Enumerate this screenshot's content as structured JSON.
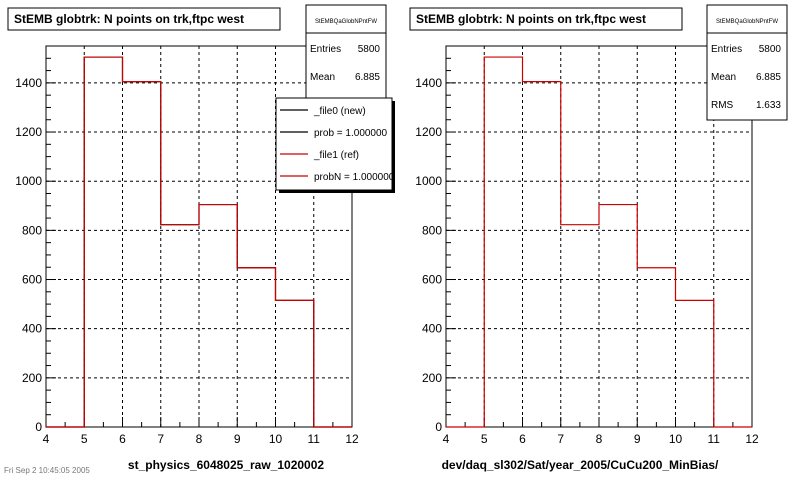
{
  "footer": {
    "stamp": "Fri Sep  2 10:45:05 2005"
  },
  "chart_data": [
    {
      "type": "bar",
      "title": "StEMB globtrk: N points on trk,ftpc west",
      "xlabel": "st_physics_6048025_raw_1020002",
      "ylabel": "",
      "xlim": [
        4,
        12
      ],
      "ylim": [
        0,
        1550
      ],
      "xticks": [
        4,
        5,
        6,
        7,
        8,
        9,
        10,
        11,
        12
      ],
      "yticks": [
        0,
        200,
        400,
        600,
        800,
        1000,
        1200,
        1400
      ],
      "grid": true,
      "bin_edges": [
        4,
        5,
        6,
        7,
        8,
        9,
        10,
        11,
        12
      ],
      "series": [
        {
          "name": "_file0 (new)",
          "color": "#000000",
          "values": [
            0,
            1505,
            1405,
            823,
            905,
            648,
            515,
            0
          ]
        },
        {
          "name": "_file1 (ref)",
          "color": "#cc0000",
          "values": [
            0,
            1505,
            1405,
            823,
            905,
            648,
            515,
            0
          ]
        }
      ],
      "stats": {
        "name": "StEMBQaGlobNPntFW",
        "entries_label": "Entries",
        "entries": "5800",
        "mean_label": "Mean",
        "mean": "6.885"
      },
      "legend": {
        "placement": "top-right",
        "entries": [
          {
            "label": "_file0 (new)",
            "color": "#000000"
          },
          {
            "label": "prob = 1.000000",
            "color": "#000000"
          },
          {
            "label": "_file1 (ref)",
            "color": "#cc0000"
          },
          {
            "label": "probN = 1.000000",
            "color": "#cc0000"
          }
        ]
      }
    },
    {
      "type": "bar",
      "title": "StEMB globtrk: N points on trk,ftpc west",
      "xlabel": "dev/daq_sl302/Sat/year_2005/CuCu200_MinBias/",
      "ylabel": "",
      "xlim": [
        4,
        12
      ],
      "ylim": [
        0,
        1550
      ],
      "xticks": [
        4,
        5,
        6,
        7,
        8,
        9,
        10,
        11,
        12
      ],
      "yticks": [
        0,
        200,
        400,
        600,
        800,
        1000,
        1200,
        1400
      ],
      "grid": true,
      "bin_edges": [
        4,
        5,
        6,
        7,
        8,
        9,
        10,
        11,
        12
      ],
      "series": [
        {
          "color": "#cc0000",
          "values": [
            0,
            1505,
            1405,
            823,
            905,
            648,
            515,
            0
          ]
        }
      ],
      "stats": {
        "name": "StEMBQaGlobNPntFW",
        "entries_label": "Entries",
        "entries": "5800",
        "mean_label": "Mean",
        "mean": "6.885",
        "rms_label": "RMS",
        "rms": "1.633"
      }
    }
  ]
}
